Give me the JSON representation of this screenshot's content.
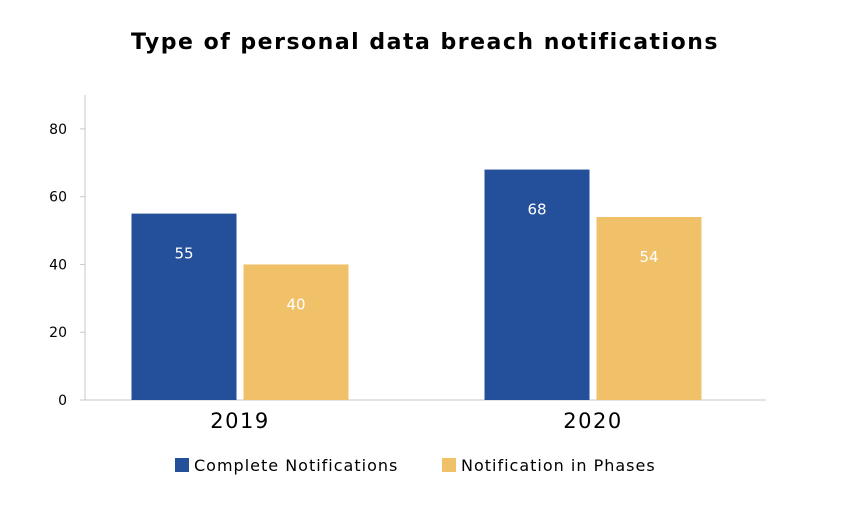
{
  "chart_data": {
    "type": "bar",
    "title": "Type of personal data breach notifications",
    "xlabel": "",
    "ylabel": "",
    "categories": [
      "2019",
      "2020"
    ],
    "series": [
      {
        "name": "Complete Notifications",
        "values": [
          55,
          68
        ],
        "color": "#234f9b"
      },
      {
        "name": "Notification in Phases",
        "values": [
          40,
          54
        ],
        "color": "#f0c169"
      }
    ],
    "ylim": [
      0,
      90
    ],
    "yticks": [
      0,
      20,
      40,
      60,
      80
    ],
    "data_labels": true,
    "data_label_color": "#ffffff",
    "grid": false,
    "legend_position": "bottom"
  }
}
